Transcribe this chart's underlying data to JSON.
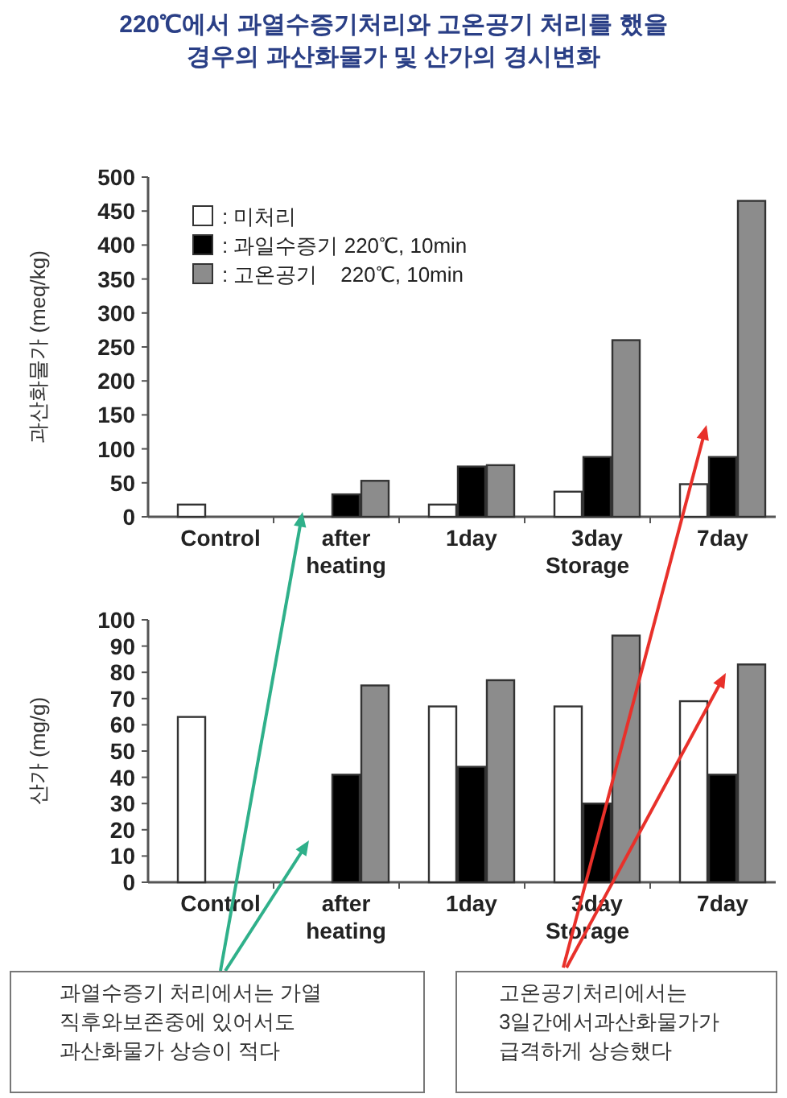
{
  "chart_data": [
    {
      "type": "bar",
      "title": "220℃에서 과열수증기처리와 고온공기 처리를 했을 경우의 과산화물가 및 산가의 경시변화",
      "categories": [
        "Control",
        "after heating",
        "1day",
        "3day",
        "7day"
      ],
      "xlabel": "Storage",
      "ylabel": "과산화물가 (meq/kg)",
      "ylim": [
        0,
        500
      ],
      "yticks": [
        0,
        50,
        100,
        150,
        200,
        250,
        300,
        350,
        400,
        450,
        500
      ],
      "legend": "top left",
      "series": [
        {
          "name": ": 미처리",
          "color": "#ffffff",
          "values": [
            18,
            null,
            18,
            37,
            48
          ]
        },
        {
          "name": ": 과일수증기 220℃, 10min",
          "color": "#000000",
          "values": [
            null,
            33,
            74,
            88,
            88
          ]
        },
        {
          "name": ": 고온공기    220℃, 10min",
          "color": "#8c8c8c",
          "values": [
            null,
            53,
            76,
            260,
            465
          ]
        }
      ]
    },
    {
      "type": "bar",
      "categories": [
        "Control",
        "after heating",
        "1day",
        "3day",
        "7day"
      ],
      "xlabel": "Storage",
      "ylabel": "산가 (mg/g)",
      "ylim": [
        0,
        100
      ],
      "yticks": [
        0,
        10,
        20,
        30,
        40,
        50,
        60,
        70,
        80,
        90,
        100
      ],
      "annotations": [
        "과열수증기 처리에서는 가열 직후와보존중에 있어서도 과산화물가 상승이 적다",
        "고온공기처리에서는 3일간에서과산화물가가 급격하게 상승했다"
      ],
      "series": [
        {
          "color": "#ffffff",
          "values": [
            63,
            null,
            67,
            67,
            69
          ]
        },
        {
          "color": "#000000",
          "values": [
            null,
            41,
            44,
            30,
            41
          ]
        },
        {
          "color": "#8c8c8c",
          "values": [
            null,
            75,
            77,
            94,
            83
          ]
        }
      ]
    }
  ]
}
